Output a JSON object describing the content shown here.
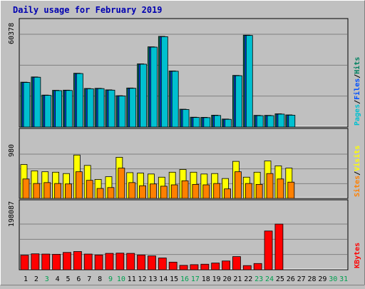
{
  "title": "Daily usage for February 2019",
  "colors": {
    "background": "#c0c0c0",
    "plot": "#c0c0c0",
    "title": "#0000b0",
    "pages": "#00c0d0",
    "files": "#0050ff",
    "hits": "#008060",
    "visits": "#ffff00",
    "sites": "#ff8000",
    "kbytes": "#ff0000",
    "weekend_label": "#00a050",
    "weekday_label": "#000000"
  },
  "chart_data": [
    {
      "type": "bar",
      "panel": "pages-files-hits",
      "categories": [
        "1",
        "2",
        "3",
        "4",
        "5",
        "6",
        "7",
        "8",
        "9",
        "10",
        "11",
        "12",
        "13",
        "14",
        "15",
        "16",
        "17",
        "18",
        "19",
        "20",
        "21",
        "22",
        "23",
        "24",
        "25",
        "26",
        "27",
        "28",
        "29",
        "30",
        "31"
      ],
      "axis_max_label": "60378",
      "ylim": [
        0,
        60378
      ],
      "series": [
        {
          "name": "Hits",
          "color": "#008060",
          "values": [
            29200,
            32600,
            20800,
            23900,
            24000,
            35000,
            25100,
            25200,
            24200,
            20400,
            25400,
            41100,
            52200,
            59000,
            36500,
            11600,
            6400,
            6300,
            7700,
            5200,
            33600,
            59800,
            7600,
            7600,
            8600,
            7900,
            null,
            null,
            null,
            null,
            null
          ]
        },
        {
          "name": "Files",
          "color": "#0050ff",
          "values": [
            29000,
            32400,
            20600,
            23700,
            23800,
            34800,
            24900,
            25000,
            24000,
            20200,
            25200,
            40900,
            52000,
            58800,
            36300,
            11400,
            6200,
            6100,
            7500,
            5000,
            33400,
            59600,
            7400,
            7400,
            8400,
            7700,
            null,
            null,
            null,
            null,
            null
          ]
        },
        {
          "name": "Pages",
          "color": "#00c0d0",
          "values": [
            29000,
            32400,
            20600,
            23700,
            23800,
            34800,
            24900,
            25000,
            24000,
            20200,
            25200,
            40900,
            52000,
            58800,
            36300,
            11400,
            6200,
            6100,
            7500,
            5000,
            33400,
            59600,
            7400,
            7400,
            8400,
            7700,
            null,
            null,
            null,
            null,
            null
          ]
        }
      ],
      "axis_title": [
        "Pages",
        "Files",
        "Hits"
      ]
    },
    {
      "type": "bar",
      "panel": "visits-sites",
      "categories": [
        "1",
        "2",
        "3",
        "4",
        "5",
        "6",
        "7",
        "8",
        "9",
        "10",
        "11",
        "12",
        "13",
        "14",
        "15",
        "16",
        "17",
        "18",
        "19",
        "20",
        "21",
        "22",
        "23",
        "24",
        "25",
        "26",
        "27",
        "28",
        "29",
        "30",
        "31"
      ],
      "axis_max_label": "980",
      "ylim": [
        0,
        980
      ],
      "series": [
        {
          "name": "Visits",
          "color": "#ffff00",
          "values": [
            750,
            610,
            590,
            580,
            550,
            960,
            730,
            420,
            480,
            910,
            570,
            560,
            540,
            470,
            580,
            640,
            580,
            540,
            550,
            440,
            820,
            470,
            580,
            830,
            720,
            670,
            null,
            null,
            null,
            null,
            null
          ]
        },
        {
          "name": "Sites",
          "color": "#ff8000",
          "values": [
            430,
            330,
            350,
            330,
            320,
            590,
            400,
            220,
            240,
            670,
            350,
            280,
            320,
            270,
            300,
            390,
            310,
            300,
            330,
            210,
            590,
            330,
            310,
            550,
            430,
            360,
            null,
            null,
            null,
            null,
            null
          ]
        }
      ],
      "axis_title": [
        "Sites",
        "Visits"
      ]
    },
    {
      "type": "bar",
      "panel": "kbytes",
      "categories": [
        "1",
        "2",
        "3",
        "4",
        "5",
        "6",
        "7",
        "8",
        "9",
        "10",
        "11",
        "12",
        "13",
        "14",
        "15",
        "16",
        "17",
        "18",
        "19",
        "20",
        "21",
        "22",
        "23",
        "24",
        "25",
        "26",
        "27",
        "28",
        "29",
        "30",
        "31"
      ],
      "axis_max_label": "198087",
      "ylim": [
        0,
        198087
      ],
      "series": [
        {
          "name": "KBytes",
          "color": "#ff0000",
          "values": [
            63000,
            69000,
            68000,
            67000,
            75000,
            79000,
            68000,
            64000,
            71000,
            72000,
            71000,
            64000,
            60000,
            51000,
            33000,
            19000,
            22000,
            24000,
            29000,
            38000,
            57000,
            18000,
            27000,
            168000,
            198000,
            null,
            null,
            null,
            null,
            null,
            null
          ]
        }
      ],
      "axis_title": [
        "KBytes"
      ]
    }
  ],
  "weekend_days": [
    "3",
    "9",
    "10",
    "16",
    "17",
    "23",
    "24",
    "30",
    "31"
  ]
}
